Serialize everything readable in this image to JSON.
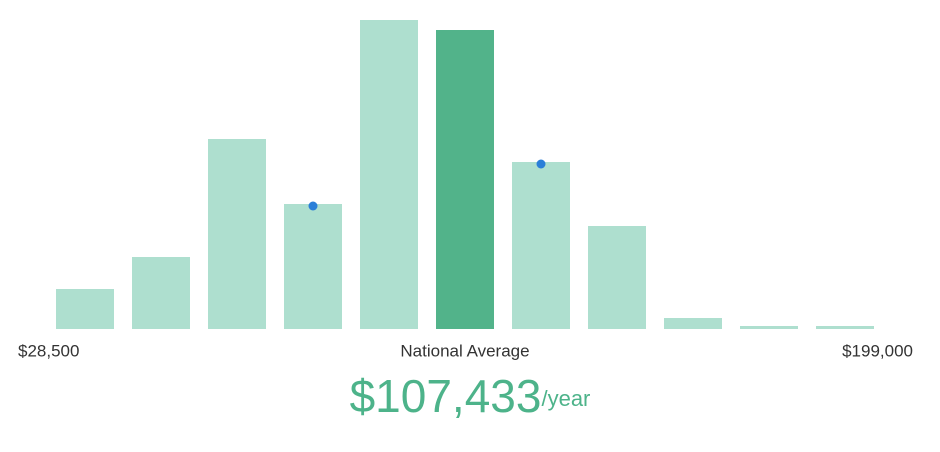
{
  "chart_data": {
    "type": "histogram",
    "bins": [
      28500,
      44000,
      59500,
      75000,
      90500,
      106000,
      121500,
      137000,
      152500,
      168000,
      183500,
      199000
    ],
    "values": [
      40,
      72,
      190,
      125,
      309,
      299,
      167,
      103,
      11,
      3,
      3
    ],
    "color": "#aedfcf",
    "highlight_index": 5,
    "highlight_color": "#52b38a",
    "marker_indices": [
      3,
      6
    ],
    "marker_color": "#2a7fd8",
    "xticks": [
      {
        "value": 28500,
        "label": "$28,500"
      },
      {
        "value": 199000,
        "label": "$199,000"
      }
    ],
    "average": {
      "label": "National Average",
      "value": "$107,433",
      "unit": "/year"
    }
  }
}
